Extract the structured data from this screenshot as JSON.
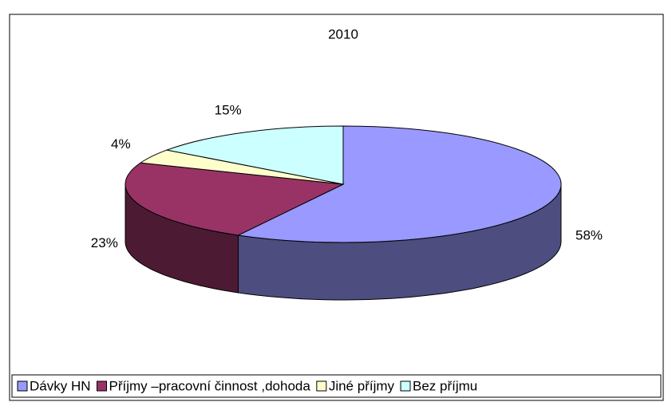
{
  "chart_data": {
    "type": "pie3d",
    "title": "2010",
    "categories": [
      "Dávky HN",
      "Příjmy –pracovní činnost ,dohoda",
      "Jiné příjmy",
      "Bez příjmu"
    ],
    "values": [
      58,
      23,
      4,
      15
    ],
    "value_labels": [
      "58%",
      "23%",
      "4%",
      "15%"
    ],
    "colors": [
      "#9999ff",
      "#993366",
      "#ffffcc",
      "#ccffff"
    ],
    "legend": "bottom"
  }
}
